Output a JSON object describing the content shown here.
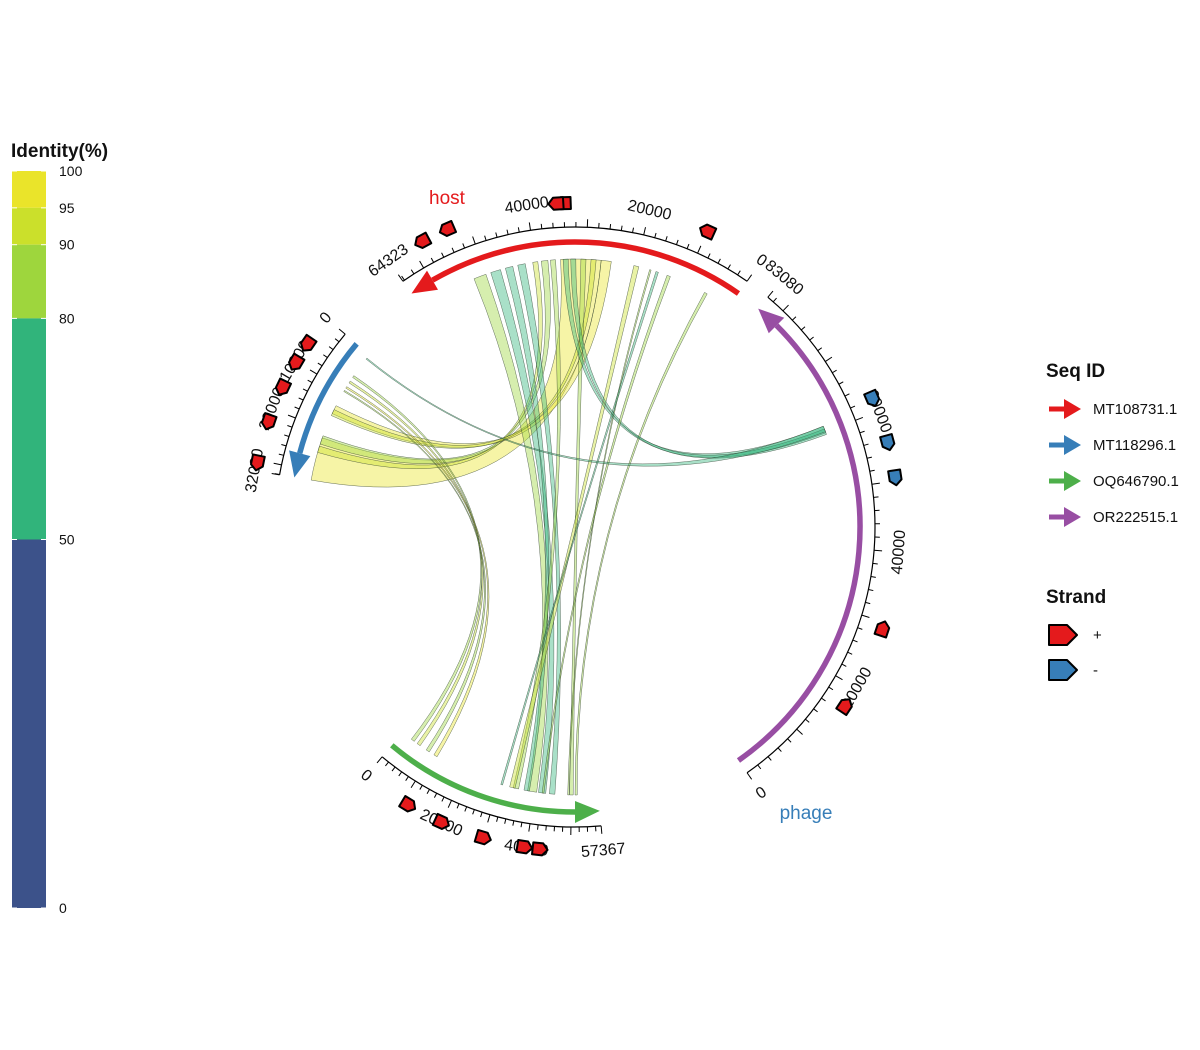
{
  "chart_data": {
    "type": "circos",
    "groups": [
      {
        "label": "host",
        "color": "#e41a1c"
      },
      {
        "label": "phage",
        "color": "#377eb8"
      }
    ],
    "colorbar": {
      "title": "Identity(%)",
      "ticks": [
        "100",
        "95",
        "90",
        "80",
        "50",
        "0"
      ],
      "bands": [
        {
          "from": 95,
          "to": 100,
          "color": "#eae42a"
        },
        {
          "from": 90,
          "to": 95,
          "color": "#cbe02b"
        },
        {
          "from": 80,
          "to": 90,
          "color": "#9ed63d"
        },
        {
          "from": 50,
          "to": 80,
          "color": "#31b47b"
        },
        {
          "from": 0,
          "to": 50,
          "color": "#3c528a"
        }
      ]
    },
    "legend_seq": {
      "title": "Seq ID",
      "items": [
        {
          "label": "MT108731.1",
          "color": "#e41a1c"
        },
        {
          "label": "MT118296.1",
          "color": "#377eb8"
        },
        {
          "label": "OQ646790.1",
          "color": "#4daf4a"
        },
        {
          "label": "OR222515.1",
          "color": "#984ea3"
        }
      ]
    },
    "legend_strand": {
      "title": "Strand",
      "items": [
        {
          "label": "+",
          "color": "#e41a1c"
        },
        {
          "label": "-",
          "color": "#377eb8"
        }
      ]
    },
    "sequences": [
      {
        "id": "MT108731.1",
        "length": 64323,
        "start_deg": 35,
        "end_deg": -35,
        "color": "#e41a1c",
        "labels": [
          {
            "value": 0,
            "text": "0"
          },
          {
            "value": 20000,
            "text": "20000"
          },
          {
            "value": 40000,
            "text": "40000"
          },
          {
            "value": 64323,
            "text": "64323"
          }
        ],
        "genes": [
          {
            "pos": 10000,
            "strand": "+"
          },
          {
            "pos": 34000,
            "strand": "+"
          },
          {
            "pos": 35200,
            "strand": "+"
          },
          {
            "pos": 53500,
            "strand": "+"
          },
          {
            "pos": 58000,
            "strand": "+"
          }
        ]
      },
      {
        "id": "MT118296.1",
        "length": 32090,
        "start_deg": -50,
        "end_deg": -80,
        "color": "#377eb8",
        "labels": [
          {
            "value": 0,
            "text": "0"
          },
          {
            "value": 10000,
            "text": "10000"
          },
          {
            "value": 20000,
            "text": "20000"
          },
          {
            "value": 32090,
            "text": "32090"
          }
        ],
        "genes": [
          {
            "pos": 6000,
            "strand": "+"
          },
          {
            "pos": 10200,
            "strand": "+"
          },
          {
            "pos": 15500,
            "strand": "+"
          },
          {
            "pos": 22500,
            "strand": "+"
          },
          {
            "pos": 30500,
            "strand": "+"
          }
        ]
      },
      {
        "id": "OQ646790.1",
        "length": 57367,
        "start_deg": -140,
        "end_deg": -185,
        "color": "#4daf4a",
        "labels": [
          {
            "value": 0,
            "text": "0"
          },
          {
            "value": 20000,
            "text": "20000"
          },
          {
            "value": 40000,
            "text": "40000"
          },
          {
            "value": 57367,
            "text": "57367"
          }
        ],
        "genes": [
          {
            "pos": 11500,
            "strand": "+"
          },
          {
            "pos": 20000,
            "strand": "+"
          },
          {
            "pos": 30000,
            "strand": "+"
          },
          {
            "pos": 39500,
            "strand": "+"
          },
          {
            "pos": 43000,
            "strand": "+"
          }
        ]
      },
      {
        "id": "OR222515.1",
        "length": 83080,
        "start_deg": 145,
        "end_deg": 40,
        "color": "#984ea3",
        "labels": [
          {
            "value": 0,
            "text": "0"
          },
          {
            "value": 20000,
            "text": "20000"
          },
          {
            "value": 40000,
            "text": "40000"
          },
          {
            "value": 60000,
            "text": "60000"
          },
          {
            "value": 83080,
            "text": "83080"
          }
        ],
        "genes": [
          {
            "pos": 17000,
            "strand": "+"
          },
          {
            "pos": 29000,
            "strand": "+"
          },
          {
            "pos": 50500,
            "strand": "-"
          },
          {
            "pos": 55500,
            "strand": "-"
          },
          {
            "pos": 62000,
            "strand": "-"
          }
        ]
      }
    ],
    "links": [
      {
        "a": [
          0,
          27000,
          35000
        ],
        "b": [
          1,
          22000,
          32000
        ],
        "identity": 100
      },
      {
        "a": [
          0,
          37500,
          38800
        ],
        "b": [
          1,
          21500,
          23500
        ],
        "identity": 88
      },
      {
        "a": [
          0,
          39500,
          40500
        ],
        "b": [
          1,
          24000,
          25500
        ],
        "identity": 92
      },
      {
        "a": [
          0,
          25000,
          27000
        ],
        "b": [
          1,
          14000,
          16000
        ],
        "identity": 96
      },
      {
        "a": [
          0,
          28000,
          29000
        ],
        "b": [
          1,
          15000,
          16500
        ],
        "identity": 93
      },
      {
        "a": [
          0,
          50000,
          52500
        ],
        "b": [
          2,
          38000,
          40500
        ],
        "identity": 82
      },
      {
        "a": [
          0,
          47000,
          49000
        ],
        "b": [
          2,
          41000,
          43000
        ],
        "identity": 76
      },
      {
        "a": [
          0,
          44500,
          46000
        ],
        "b": [
          2,
          37000,
          38500
        ],
        "identity": 70
      },
      {
        "a": [
          0,
          42000,
          43500
        ],
        "b": [
          2,
          44000,
          45500
        ],
        "identity": 65
      },
      {
        "a": [
          0,
          36000,
          37000
        ],
        "b": [
          2,
          34000,
          35500
        ],
        "identity": 85
      },
      {
        "a": [
          0,
          30000,
          31000
        ],
        "b": [
          2,
          49500,
          50500
        ],
        "identity": 84
      },
      {
        "a": [
          0,
          19500,
          20500
        ],
        "b": [
          2,
          33000,
          34500
        ],
        "identity": 91
      },
      {
        "a": [
          0,
          17000,
          17300
        ],
        "b": [
          2,
          49000,
          49400
        ],
        "identity": 80
      },
      {
        "a": [
          0,
          15500,
          16000
        ],
        "b": [
          2,
          30500,
          31000
        ],
        "identity": 78
      },
      {
        "a": [
          0,
          5000,
          5600
        ],
        "b": [
          2,
          51000,
          51600
        ],
        "identity": 81
      },
      {
        "a": [
          0,
          33500,
          34500
        ],
        "b": [
          3,
          59800,
          61000
        ],
        "identity": 72
      },
      {
        "a": [
          0,
          32000,
          33000
        ],
        "b": [
          3,
          59500,
          60500
        ],
        "identity": 70
      },
      {
        "a": [
          0,
          13000,
          13700
        ],
        "b": [
          2,
          42000,
          42500
        ],
        "identity": 88
      },
      {
        "a": [
          1,
          6000,
          6500
        ],
        "b": [
          2,
          3000,
          4000
        ],
        "identity": 85
      },
      {
        "a": [
          1,
          7500,
          8000
        ],
        "b": [
          2,
          5000,
          6000
        ],
        "identity": 93
      },
      {
        "a": [
          1,
          9000,
          9400
        ],
        "b": [
          2,
          10500,
          11500
        ],
        "identity": 96
      },
      {
        "a": [
          1,
          10000,
          10300
        ],
        "b": [
          2,
          8000,
          9000
        ],
        "identity": 88
      },
      {
        "a": [
          1,
          1000,
          1300
        ],
        "b": [
          3,
          60000,
          61000
        ],
        "identity": 75
      }
    ]
  }
}
